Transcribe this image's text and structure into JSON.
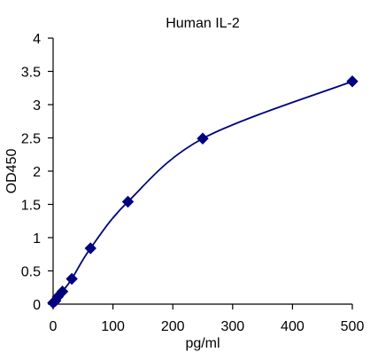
{
  "chart_data": {
    "type": "scatter",
    "title": "Human IL-2",
    "xlabel": "pg/ml",
    "ylabel": "OD450",
    "xlim": [
      0,
      500
    ],
    "ylim": [
      0,
      4
    ],
    "xticks": [
      0,
      100,
      200,
      300,
      400,
      500
    ],
    "yticks": [
      0,
      0.5,
      1,
      1.5,
      2,
      2.5,
      3,
      3.5,
      4
    ],
    "xtick_labels": [
      "0",
      "100",
      "200",
      "300",
      "400",
      "500"
    ],
    "ytick_labels": [
      "0",
      "0.5",
      "1",
      "1.5",
      "2",
      "2.5",
      "3",
      "3.5",
      "4"
    ],
    "grid": false,
    "legend": "none",
    "marker": "diamond",
    "curve": "smooth",
    "color": "#00007f",
    "series": [
      {
        "x": [
          0,
          3.9,
          7.8,
          15.6,
          31.25,
          62.5,
          125,
          250,
          500
        ],
        "values": [
          0.02,
          0.05,
          0.11,
          0.19,
          0.38,
          0.84,
          1.54,
          2.49,
          3.35
        ]
      }
    ]
  }
}
